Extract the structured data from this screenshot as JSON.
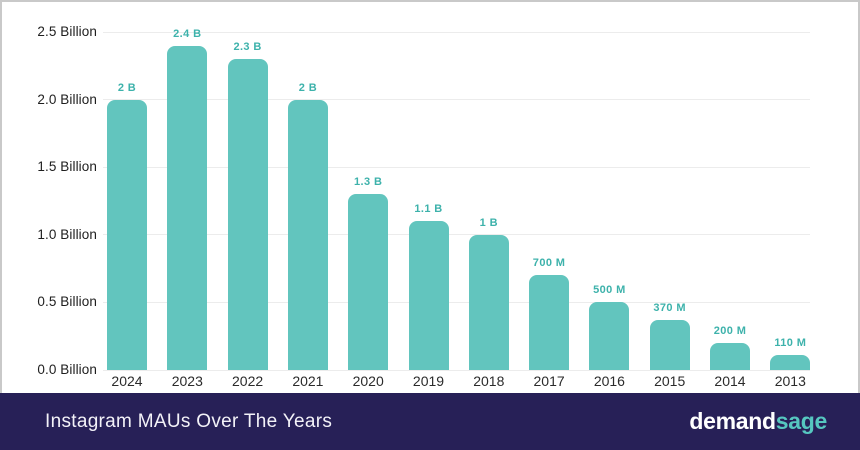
{
  "chart_data": {
    "type": "bar",
    "title": "Instagram MAUs Over The Years",
    "xlabel": "",
    "ylabel": "",
    "categories": [
      "2024",
      "2023",
      "2022",
      "2021",
      "2020",
      "2019",
      "2018",
      "2017",
      "2016",
      "2015",
      "2014",
      "2013"
    ],
    "values": [
      2.0,
      2.4,
      2.3,
      2.0,
      1.3,
      1.1,
      1.0,
      0.7,
      0.5,
      0.37,
      0.2,
      0.11
    ],
    "bar_labels": [
      "2 B",
      "2.4 B",
      "2.3 B",
      "2 B",
      "1.3 B",
      "1.1 B",
      "1 B",
      "700 M",
      "500 M",
      "370 M",
      "200 M",
      "110 M"
    ],
    "y_axis": {
      "tick_labels": [
        "2.5 Billion",
        "2.0 Billion",
        "1.5 Billion",
        "1.0 Billion",
        "0.5 Billion",
        "0.0 Billion"
      ],
      "tick_values": [
        2.5,
        2.0,
        1.5,
        1.0,
        0.5,
        0.0
      ],
      "range": [
        0,
        2.5
      ]
    },
    "grid": true,
    "legend": "none",
    "colors": {
      "bar": "#62c5be",
      "bar_label": "#3db2ab",
      "grid_line": "#ececec",
      "axis_text": "#1e1e1e"
    }
  },
  "footer": {
    "title": "Instagram MAUs Over The Years",
    "background": "#272057",
    "logo": {
      "demand": "demand",
      "sage": "sage",
      "demand_color": "#ffffff",
      "sage_color": "#56c7c0"
    }
  }
}
